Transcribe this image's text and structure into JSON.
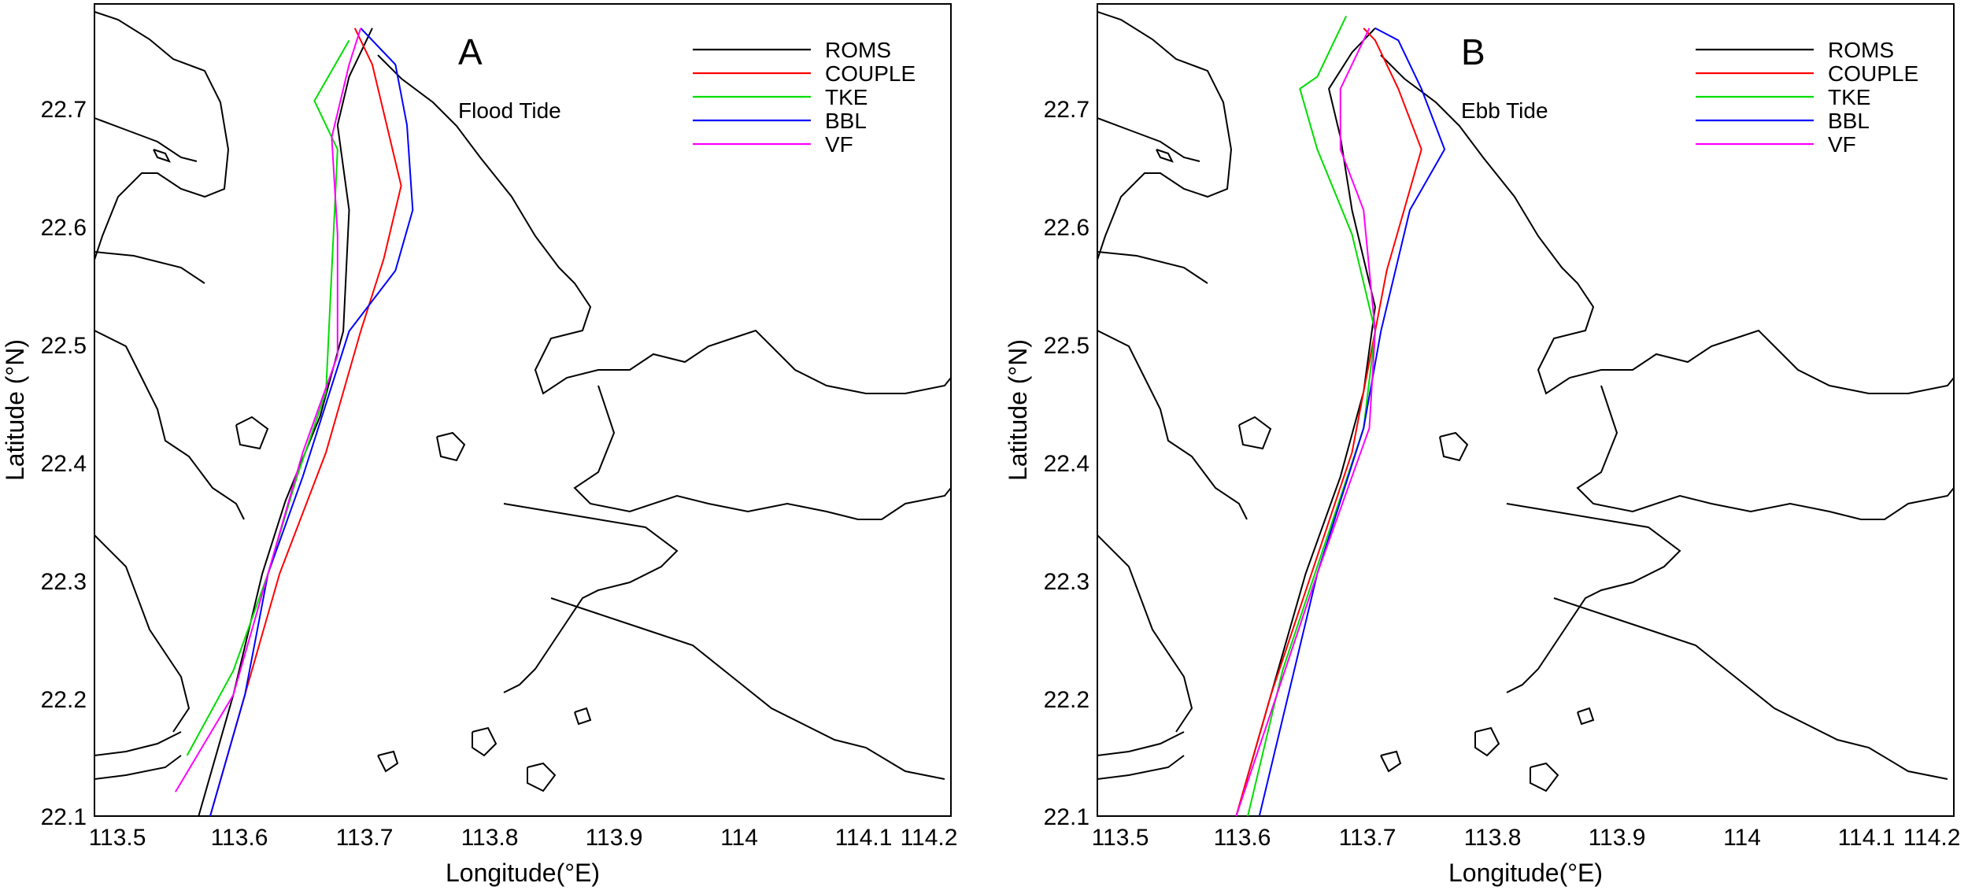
{
  "panels": [
    {
      "label": "A",
      "tide": "Flood Tide",
      "xlabel": "Longitude(°E)",
      "ylabel": "Latitude (°N)",
      "xticks": [
        "113.5",
        "113.6",
        "113.7",
        "113.8",
        "113.9",
        "114",
        "114.1",
        "114.2"
      ],
      "yticks": [
        "22.1",
        "22.2",
        "22.3",
        "22.4",
        "22.5",
        "22.6",
        "22.7"
      ],
      "xlim": [
        113.48,
        114.22
      ],
      "ylim": [
        22.1,
        22.77
      ]
    },
    {
      "label": "B",
      "tide": "Ebb Tide",
      "xlabel": "Longitude(°E)",
      "ylabel": "Latitude (°N)",
      "xticks": [
        "113.5",
        "113.6",
        "113.7",
        "113.8",
        "113.9",
        "114",
        "114.1",
        "114.2"
      ],
      "yticks": [
        "22.1",
        "22.2",
        "22.3",
        "22.4",
        "22.5",
        "22.6",
        "22.7"
      ],
      "xlim": [
        113.48,
        114.22
      ],
      "ylim": [
        22.1,
        22.77
      ]
    }
  ],
  "legend": [
    {
      "name": "ROMS",
      "color": "#000000"
    },
    {
      "name": "COUPLE",
      "color": "#ff0000"
    },
    {
      "name": "TKE",
      "color": "#00dd00"
    },
    {
      "name": "BBL",
      "color": "#0000ff"
    },
    {
      "name": "VF",
      "color": "#ff00ff"
    }
  ],
  "chart_data": [
    {
      "type": "line",
      "xlabel": "Longitude(°E)",
      "ylabel": "Latitude (°N)",
      "xlim": [
        113.48,
        114.22
      ],
      "ylim": [
        22.1,
        22.77
      ],
      "series": [
        {
          "name": "ROMS",
          "x": [
            113.57,
            113.6,
            113.625,
            113.645,
            113.675,
            113.695,
            113.7,
            113.69,
            113.7,
            113.72
          ],
          "y": [
            22.1,
            22.2,
            22.3,
            22.36,
            22.43,
            22.5,
            22.6,
            22.67,
            22.71,
            22.75
          ]
        },
        {
          "name": "COUPLE",
          "x": [
            113.58,
            113.61,
            113.64,
            113.68,
            113.71,
            113.73,
            113.745,
            113.73,
            113.72,
            113.705
          ],
          "y": [
            22.1,
            22.2,
            22.3,
            22.4,
            22.5,
            22.56,
            22.62,
            22.68,
            22.72,
            22.75
          ]
        },
        {
          "name": "TKE",
          "x": [
            113.56,
            113.6,
            113.63,
            113.655,
            113.68,
            113.685,
            113.69,
            113.67,
            113.7
          ],
          "y": [
            22.15,
            22.22,
            22.3,
            22.38,
            22.45,
            22.55,
            22.65,
            22.69,
            22.74
          ]
        },
        {
          "name": "BBL",
          "x": [
            113.58,
            113.61,
            113.63,
            113.66,
            113.7,
            113.74,
            113.755,
            113.75,
            113.74,
            113.71
          ],
          "y": [
            22.1,
            22.2,
            22.3,
            22.38,
            22.5,
            22.55,
            22.6,
            22.67,
            22.72,
            22.75
          ]
        },
        {
          "name": "VF",
          "x": [
            113.55,
            113.6,
            113.63,
            113.66,
            113.69,
            113.69,
            113.685,
            113.7,
            113.71
          ],
          "y": [
            22.12,
            22.2,
            22.3,
            22.4,
            22.48,
            22.58,
            22.66,
            22.72,
            22.75
          ]
        }
      ]
    },
    {
      "type": "line",
      "xlabel": "Longitude(°E)",
      "ylabel": "Latitude (°N)",
      "xlim": [
        113.48,
        114.22
      ],
      "ylim": [
        22.1,
        22.77
      ],
      "series": [
        {
          "name": "ROMS",
          "x": [
            113.6,
            113.63,
            113.66,
            113.69,
            113.71,
            113.72,
            113.7,
            113.69,
            113.68,
            113.7,
            113.72
          ],
          "y": [
            22.1,
            22.2,
            22.3,
            22.38,
            22.45,
            22.52,
            22.6,
            22.66,
            22.7,
            22.73,
            22.75
          ]
        },
        {
          "name": "COUPLE",
          "x": [
            113.6,
            113.63,
            113.665,
            113.7,
            113.72,
            113.73,
            113.76,
            113.74,
            113.72,
            113.71
          ],
          "y": [
            22.1,
            22.2,
            22.3,
            22.4,
            22.5,
            22.55,
            22.65,
            22.7,
            22.74,
            22.75
          ]
        },
        {
          "name": "TKE",
          "x": [
            113.61,
            113.64,
            113.675,
            113.71,
            113.72,
            113.7,
            113.67,
            113.655,
            113.67,
            113.695
          ],
          "y": [
            22.1,
            22.22,
            22.32,
            22.42,
            22.5,
            22.58,
            22.65,
            22.7,
            22.71,
            22.76
          ]
        },
        {
          "name": "BBL",
          "x": [
            113.62,
            113.645,
            113.67,
            113.71,
            113.725,
            113.75,
            113.78,
            113.76,
            113.74,
            113.72
          ],
          "y": [
            22.1,
            22.2,
            22.3,
            22.42,
            22.5,
            22.6,
            22.65,
            22.7,
            22.74,
            22.75
          ]
        },
        {
          "name": "VF",
          "x": [
            113.6,
            113.635,
            113.67,
            113.715,
            113.72,
            113.71,
            113.69,
            113.69,
            113.715
          ],
          "y": [
            22.1,
            22.2,
            22.3,
            22.42,
            22.5,
            22.6,
            22.65,
            22.7,
            22.75
          ]
        }
      ]
    }
  ]
}
